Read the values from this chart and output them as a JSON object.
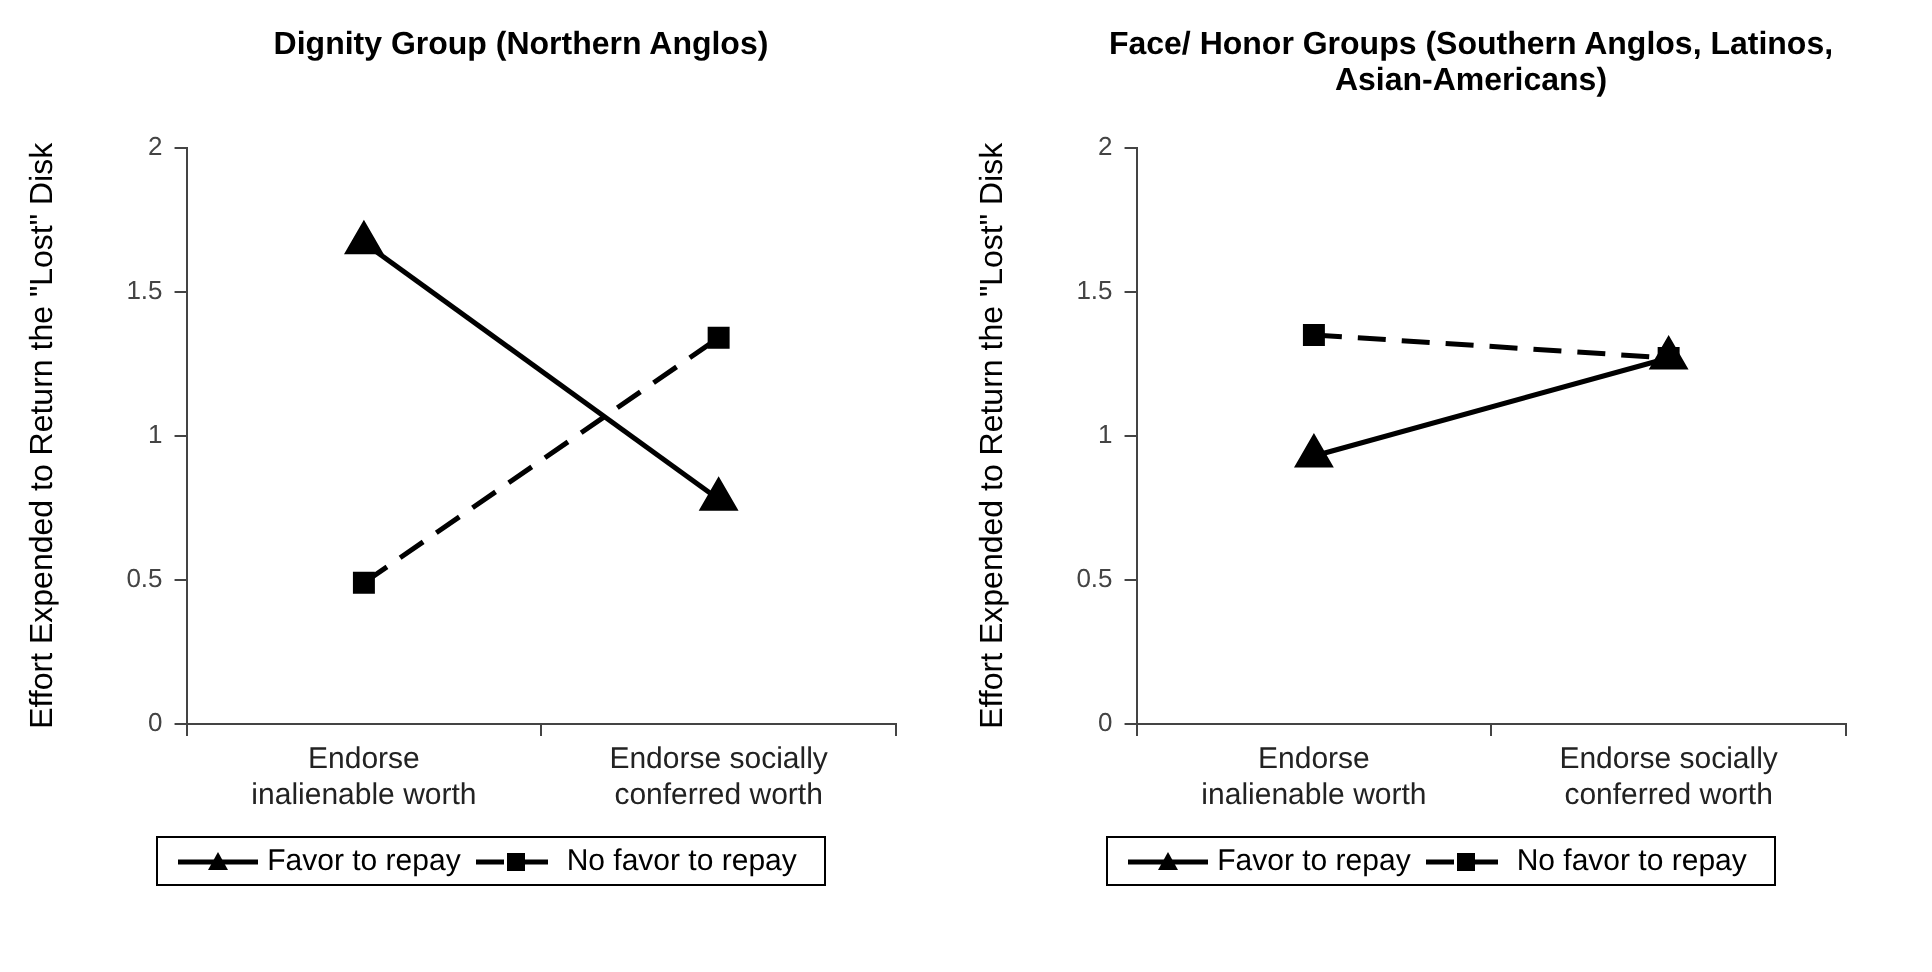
{
  "chart_data": [
    {
      "type": "line",
      "title": "Dignity Group (Northern Anglos)",
      "ylabel": "Effort Expended to Return the \"Lost\" Disk",
      "categories": [
        "Endorse inalienable worth",
        "Endorse socially conferred worth"
      ],
      "series": [
        {
          "name": "Favor to repay",
          "color": "#000000",
          "values": [
            1.67,
            0.78
          ],
          "marker": "triangle",
          "line_style": "solid"
        },
        {
          "name": "No favor to repay",
          "color": "#000000",
          "values": [
            0.49,
            1.34
          ],
          "marker": "square",
          "line_style": "dashed"
        }
      ],
      "ylim": [
        0,
        2
      ],
      "yticks": [
        0,
        0.5,
        1,
        1.5,
        2
      ],
      "grid": false,
      "legend": "bottom"
    },
    {
      "type": "line",
      "title": "Face/ Honor Groups (Southern Anglos, Latinos, Asian-Americans)",
      "ylabel": "Effort Expended to Return the \"Lost\" Disk",
      "categories": [
        "Endorse inalienable worth",
        "Endorse socially conferred worth"
      ],
      "series": [
        {
          "name": "Favor to repay",
          "color": "#000000",
          "values": [
            0.93,
            1.27
          ],
          "marker": "triangle",
          "line_style": "solid"
        },
        {
          "name": "No favor to repay",
          "color": "#000000",
          "values": [
            1.35,
            1.27
          ],
          "marker": "square",
          "line_style": "dashed"
        }
      ],
      "ylim": [
        0,
        2
      ],
      "yticks": [
        0,
        0.5,
        1,
        1.5,
        2
      ],
      "grid": false,
      "legend": "bottom"
    }
  ]
}
